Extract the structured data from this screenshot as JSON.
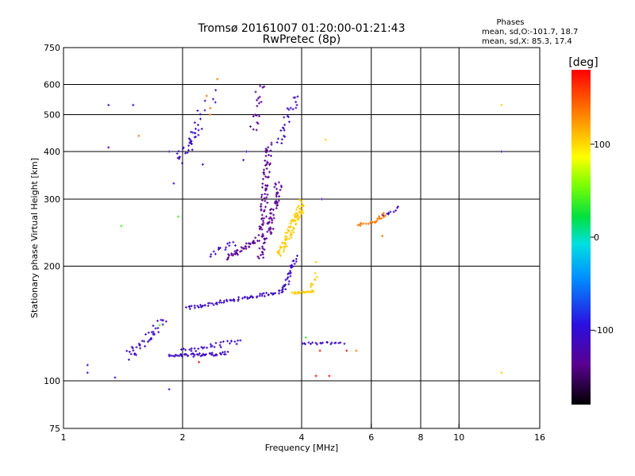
{
  "chart_data": {
    "type": "scatter",
    "title": "Tromsø 20161007 01:20:00-01:21:43",
    "subtitle": "RwPretec (8p)",
    "xlabel": "Frequency [MHz]",
    "ylabel": "Stationary phase Virtual Height [km]",
    "x_scale": "log",
    "y_scale": "log",
    "xlim": [
      1,
      16
    ],
    "ylim": [
      75,
      750
    ],
    "x_ticks": [
      1,
      2,
      4,
      6,
      8,
      10,
      16
    ],
    "x_tick_labels": [
      "1",
      "2",
      "4",
      "6",
      "8",
      "10",
      "16"
    ],
    "y_ticks": [
      75,
      100,
      200,
      300,
      400,
      500,
      600,
      750
    ],
    "y_tick_labels": [
      "75",
      "100",
      "200",
      "300",
      "400",
      "500",
      "600",
      "750"
    ],
    "x_grid": [
      1,
      2,
      4,
      6,
      8,
      10,
      16
    ],
    "y_grid": [
      100,
      200,
      300,
      400,
      500,
      600
    ],
    "grid": true,
    "phases_box": {
      "heading": "Phases",
      "line1": "mean, sd,O:-101.7, 18.7",
      "line2": "mean, sd,X:  85.3, 17.4"
    },
    "colorbar": {
      "label": "[deg]",
      "range": [
        -180,
        180
      ],
      "ticks": [
        100,
        0,
        -100
      ],
      "tick_labels": [
        "100",
        "0",
        "-100"
      ]
    },
    "series": [
      {
        "phase_deg": -110,
        "segments": [
          {
            "f": [
              1.45,
              1.8
            ],
            "h": [
              115,
              145
            ],
            "n": 40,
            "spread": 0.06
          },
          {
            "f": [
              1.85,
              2.6
            ],
            "h": [
              116,
              118
            ],
            "n": 50,
            "spread": 0.02
          },
          {
            "f": [
              2.0,
              2.8
            ],
            "h": [
              120,
              127
            ],
            "n": 30,
            "spread": 0.03
          },
          {
            "f": [
              2.05,
              3.6
            ],
            "h": [
              155,
              172
            ],
            "n": 70,
            "spread": 0.02
          },
          {
            "f": [
              3.6,
              3.85
            ],
            "h": [
              172,
              210
            ],
            "n": 30,
            "spread": 0.03
          },
          {
            "f": [
              1.95,
              2.2
            ],
            "h": [
              380,
              470
            ],
            "n": 30,
            "spread": 0.05
          },
          {
            "f": [
              2.1,
              2.4
            ],
            "h": [
              420,
              580
            ],
            "n": 12,
            "spread": 0.08
          },
          {
            "f": [
              2.35,
              2.7
            ],
            "h": [
              215,
              230
            ],
            "n": 15,
            "spread": 0.03
          },
          {
            "f": [
              3.5,
              3.85
            ],
            "h": [
              420,
              560
            ],
            "n": 25,
            "spread": 0.05
          },
          {
            "f": [
              4.0,
              5.1
            ],
            "h": [
              125,
              126
            ],
            "n": 20,
            "spread": 0.015
          },
          {
            "f": [
              6.4,
              7.0
            ],
            "h": [
              270,
              285
            ],
            "n": 10,
            "spread": 0.02
          }
        ],
        "points": [
          [
            1.3,
            530
          ],
          [
            1.3,
            410
          ],
          [
            1.5,
            530
          ],
          [
            1.15,
            105
          ],
          [
            1.15,
            110
          ],
          [
            1.35,
            102
          ],
          [
            1.85,
            95
          ],
          [
            1.9,
            330
          ],
          [
            1.85,
            400
          ],
          [
            2.25,
            370
          ],
          [
            2.85,
            380
          ],
          [
            2.9,
            400
          ],
          [
            4.5,
            300
          ],
          [
            12.8,
            400
          ]
        ]
      },
      {
        "phase_deg": -135,
        "segments": [
          {
            "f": [
              3.15,
              3.3
            ],
            "h": [
              210,
              420
            ],
            "n": 90,
            "spread": 0.04
          },
          {
            "f": [
              3.3,
              3.5
            ],
            "h": [
              240,
              330
            ],
            "n": 50,
            "spread": 0.04
          },
          {
            "f": [
              2.6,
              3.1
            ],
            "h": [
              210,
              235
            ],
            "n": 40,
            "spread": 0.03
          },
          {
            "f": [
              3.0,
              3.2
            ],
            "h": [
              450,
              560
            ],
            "n": 15,
            "spread": 0.05
          },
          {
            "f": [
              3.1,
              3.2
            ],
            "h": [
              580,
              600
            ],
            "n": 4,
            "spread": 0.03
          }
        ],
        "points": []
      },
      {
        "phase_deg": 105,
        "segments": [
          {
            "f": [
              3.5,
              4.0
            ],
            "h": [
              215,
              285
            ],
            "n": 70,
            "spread": 0.04
          },
          {
            "f": [
              3.8,
              4.05
            ],
            "h": [
              260,
              300
            ],
            "n": 20,
            "spread": 0.04
          },
          {
            "f": [
              3.8,
              4.3
            ],
            "h": [
              170,
              172
            ],
            "n": 25,
            "spread": 0.01
          },
          {
            "f": [
              4.2,
              4.35
            ],
            "h": [
              175,
              190
            ],
            "n": 8,
            "spread": 0.02
          }
        ],
        "points": [
          [
            4.35,
            205
          ],
          [
            4.6,
            430
          ],
          [
            12.8,
            530
          ],
          [
            12.8,
            105
          ]
        ]
      },
      {
        "phase_deg": 135,
        "segments": [
          {
            "f": [
              5.5,
              6.0
            ],
            "h": [
              255,
              262
            ],
            "n": 10,
            "spread": 0.02
          },
          {
            "f": [
              6.1,
              6.5
            ],
            "h": [
              260,
              275
            ],
            "n": 15,
            "spread": 0.02
          }
        ],
        "points": [
          [
            6.4,
            240
          ],
          [
            2.35,
            500
          ],
          [
            2.35,
            520
          ],
          [
            2.45,
            620
          ],
          [
            2.3,
            560
          ],
          [
            5.5,
            120
          ],
          [
            1.55,
            440
          ]
        ]
      },
      {
        "phase_deg": 175,
        "segments": [],
        "points": [
          [
            4.45,
            120
          ],
          [
            4.35,
            103
          ],
          [
            4.7,
            103
          ],
          [
            2.2,
            112
          ],
          [
            5.2,
            120
          ]
        ]
      },
      {
        "phase_deg": 40,
        "segments": [],
        "points": [
          [
            1.4,
            255
          ],
          [
            1.95,
            270
          ],
          [
            4.1,
            130
          ],
          [
            1.75,
            140
          ]
        ]
      }
    ]
  }
}
